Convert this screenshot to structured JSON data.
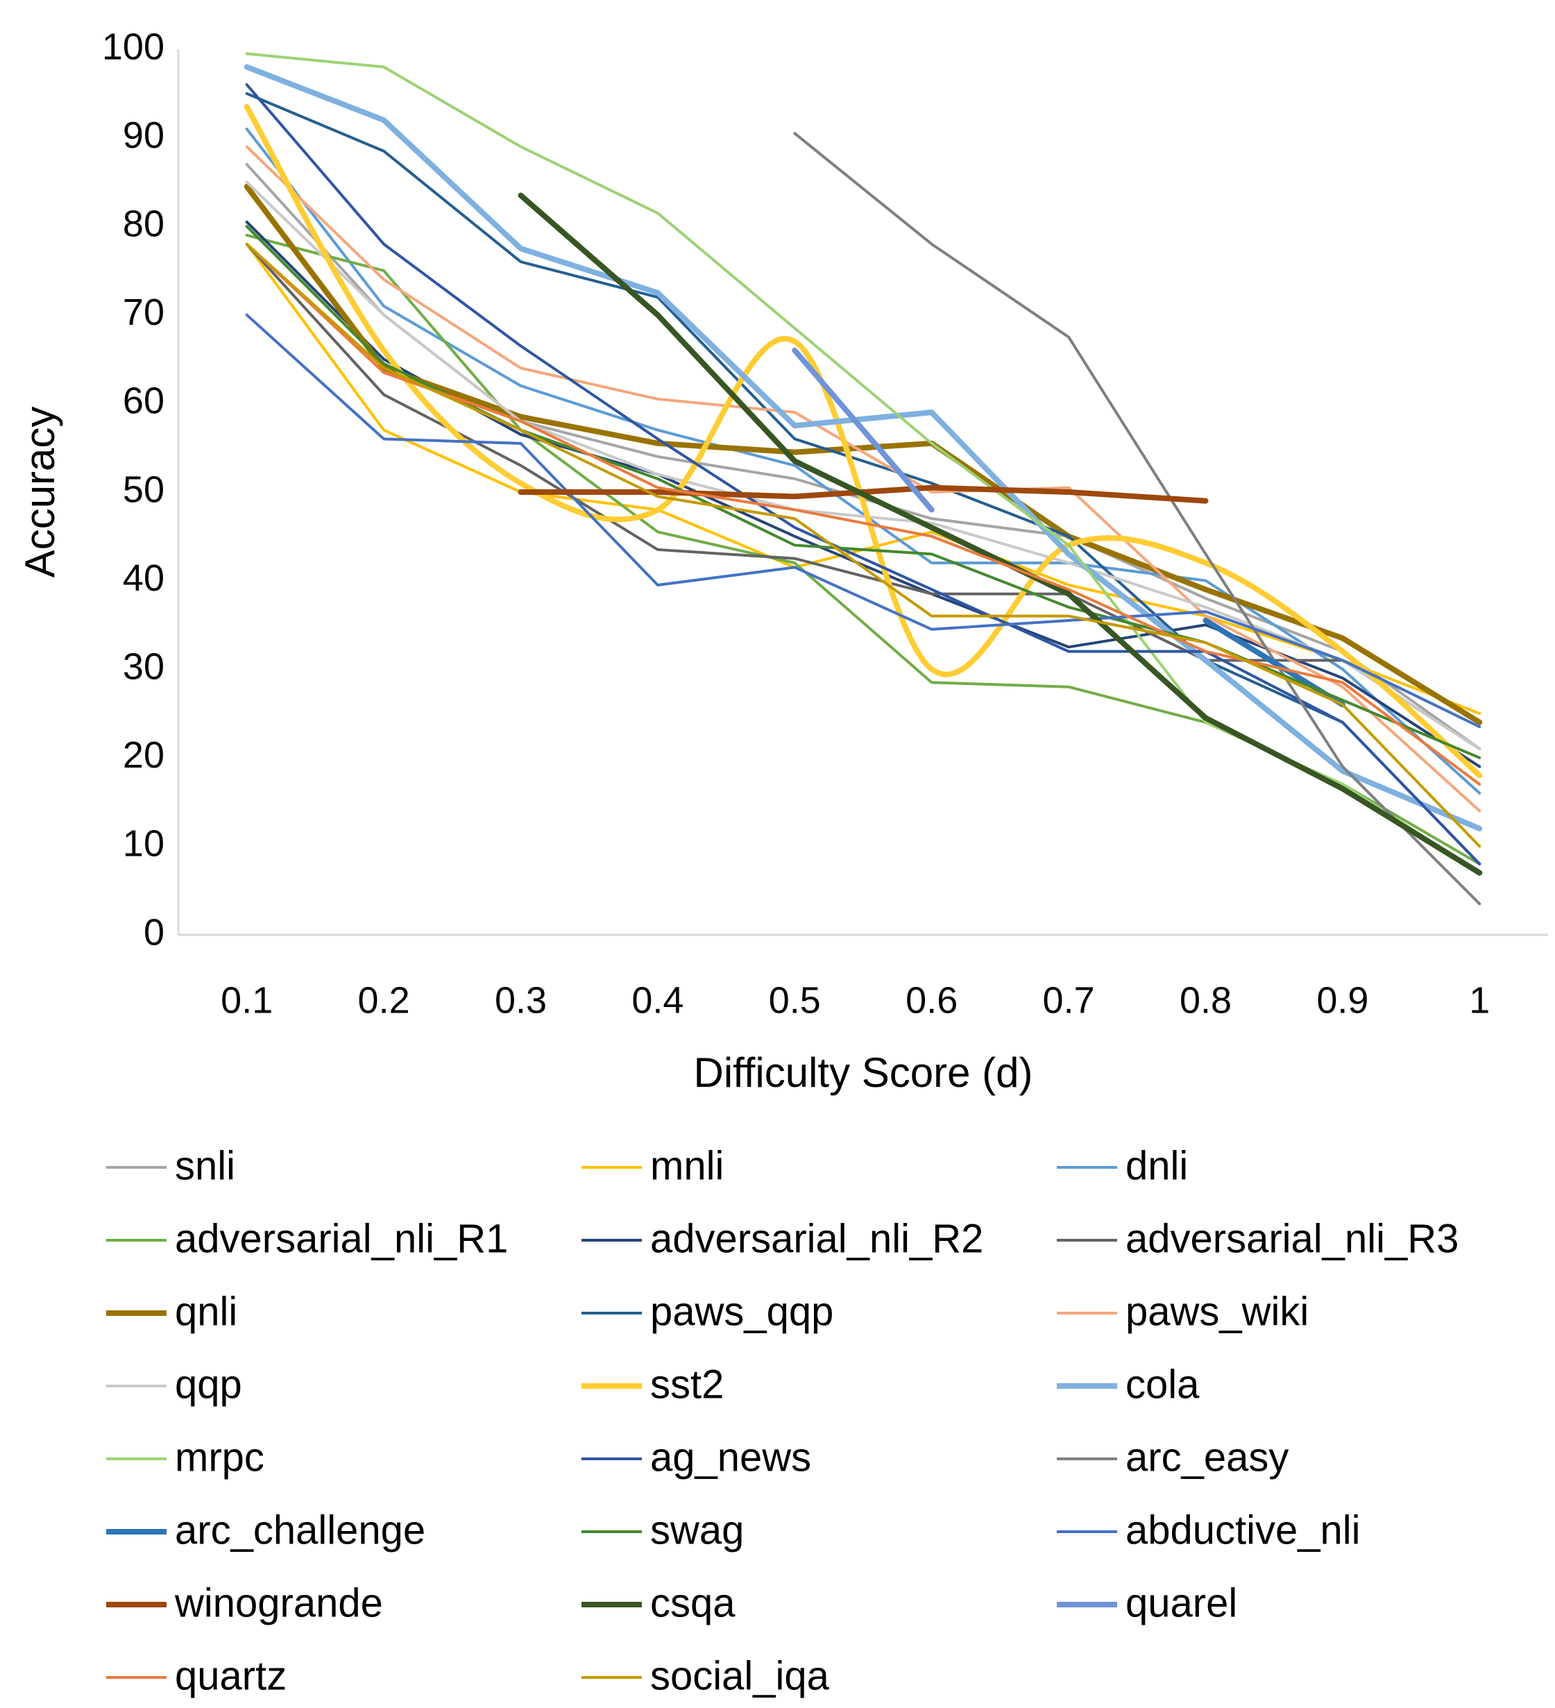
{
  "chart_data": {
    "type": "line",
    "x_label": "Difficulty Score (d)",
    "y_label": "Accuracy",
    "categories": [
      "0.1",
      "0.2",
      "0.3",
      "0.4",
      "0.5",
      "0.6",
      "0.7",
      "0.8",
      "0.9",
      "1"
    ],
    "ylim": [
      0,
      100
    ],
    "yticks": [
      0,
      10,
      20,
      30,
      40,
      50,
      60,
      70,
      80,
      90,
      100
    ],
    "grid": false,
    "legend": "bottom",
    "series": [
      {
        "name": "snli",
        "color": "#a5a5a5",
        "values": [
          87,
          70,
          58,
          54,
          51.5,
          47,
          45,
          38,
          32,
          21
        ]
      },
      {
        "name": "mnli",
        "color": "#ffc000",
        "values": [
          78,
          57,
          50,
          48,
          41.5,
          45.5,
          39.5,
          36,
          31,
          25
        ]
      },
      {
        "name": "dnli",
        "color": "#5b9bd5",
        "values": [
          91,
          71,
          62,
          57,
          53,
          42,
          42,
          40,
          30,
          16
        ]
      },
      {
        "name": "adversarial_nli_R1",
        "color": "#70ad47",
        "values": [
          79,
          75,
          57,
          45.5,
          42,
          28.5,
          28,
          24,
          17,
          8
        ]
      },
      {
        "name": "adversarial_nli_R2",
        "color": "#264478",
        "values": [
          80.5,
          65,
          56.5,
          52,
          45,
          38.5,
          32.5,
          35,
          29,
          19
        ]
      },
      {
        "name": "adversarial_nli_R3",
        "color": "#636363",
        "values": [
          78,
          61,
          53,
          43.5,
          42.5,
          38.5,
          38.5,
          31,
          31,
          21
        ]
      },
      {
        "name": "qnli",
        "color": "#997300",
        "thick": true,
        "values": [
          84.5,
          64,
          58.5,
          55.5,
          54.5,
          55.5,
          45,
          39,
          33.5,
          24
        ]
      },
      {
        "name": "paws_qqp",
        "color": "#255e91",
        "values": [
          95,
          88.5,
          76,
          72,
          56,
          51,
          45,
          31,
          24,
          8
        ]
      },
      {
        "name": "paws_wiki",
        "color": "#f4a77c",
        "values": [
          89,
          74,
          64,
          60.5,
          59,
          50,
          50.5,
          36,
          28,
          14
        ]
      },
      {
        "name": "qqp",
        "color": "#c9c9c9",
        "values": [
          85,
          70,
          58,
          52,
          48,
          46.5,
          42,
          37,
          31,
          21
        ]
      },
      {
        "name": "sst2",
        "color": "#ffcc33",
        "thick": true,
        "smooth": true,
        "values": [
          93.5,
          66,
          51,
          48,
          67,
          30,
          44,
          42,
          32,
          18
        ]
      },
      {
        "name": "cola",
        "color": "#7eb0e0",
        "thick": true,
        "values": [
          98,
          92,
          77.5,
          72.5,
          57.5,
          59,
          43,
          31,
          18.5,
          12
        ]
      },
      {
        "name": "mrpc",
        "color": "#9cd275",
        "values": [
          99.5,
          98,
          89,
          81.5,
          68.5,
          55.5,
          44,
          24,
          17,
          7
        ]
      },
      {
        "name": "ag_news",
        "color": "#2f55a4",
        "values": [
          96,
          78,
          66.5,
          56,
          46,
          39,
          32,
          32,
          24,
          8
        ]
      },
      {
        "name": "arc_easy",
        "color": "#7f7f7f",
        "values": [
          null,
          null,
          null,
          null,
          90.5,
          78,
          67.5,
          43,
          19,
          3.5
        ]
      },
      {
        "name": "arc_challenge",
        "color": "#2e75b6",
        "thick": true,
        "values": [
          null,
          null,
          null,
          null,
          null,
          null,
          null,
          35.5,
          26,
          null
        ]
      },
      {
        "name": "swag",
        "color": "#43882e",
        "values": [
          80,
          64.5,
          57,
          51.5,
          44,
          43,
          37,
          33,
          26.5,
          20
        ]
      },
      {
        "name": "abductive_nli",
        "color": "#4472c4",
        "values": [
          70,
          56,
          55.5,
          39.5,
          41.5,
          34.5,
          35.5,
          36.5,
          31,
          23.5
        ]
      },
      {
        "name": "winogrande",
        "color": "#9e480e",
        "thick": true,
        "values": [
          null,
          null,
          50,
          50,
          49.5,
          50.5,
          50,
          49,
          null,
          null
        ]
      },
      {
        "name": "csqa",
        "color": "#375623",
        "thick": true,
        "values": [
          null,
          null,
          83.5,
          70,
          53.5,
          46,
          38.5,
          24.5,
          16.5,
          7
        ]
      },
      {
        "name": "quarel",
        "color": "#6f94d8",
        "thick": true,
        "values": [
          null,
          null,
          null,
          null,
          66,
          48,
          null,
          null,
          null,
          null
        ]
      },
      {
        "name": "quartz",
        "color": "#eb7a3d",
        "values": [
          78,
          63.5,
          58,
          50.5,
          48,
          45,
          39,
          32,
          28.5,
          17
        ]
      },
      {
        "name": "social_iqa",
        "color": "#c49a00",
        "values": [
          78,
          64,
          57,
          49.5,
          47,
          36,
          36,
          33,
          26,
          10
        ]
      }
    ]
  }
}
